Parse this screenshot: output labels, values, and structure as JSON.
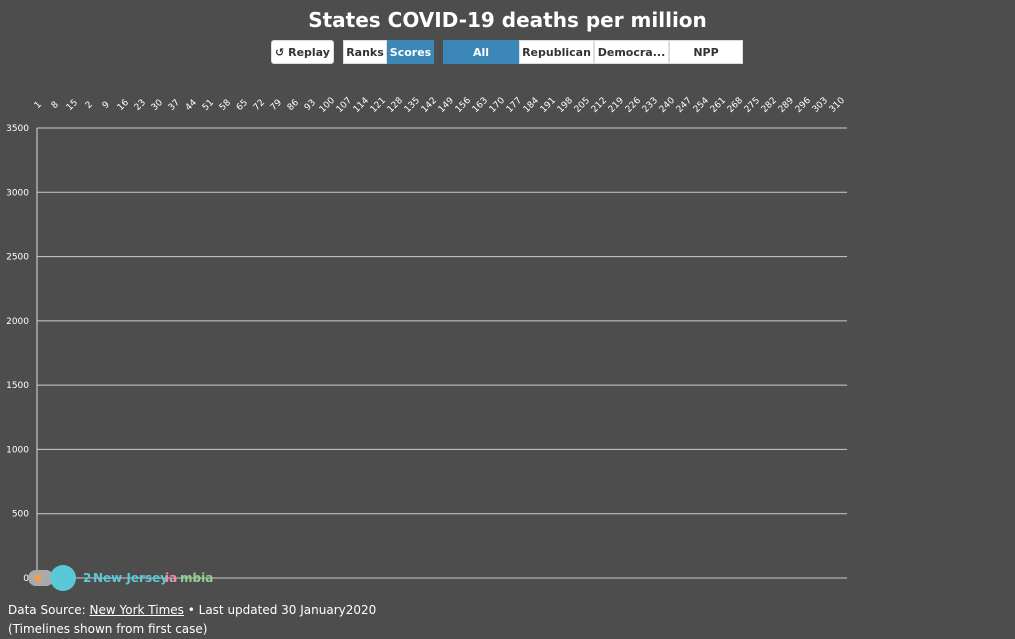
{
  "title": "States COVID-19 deaths per million",
  "controls": {
    "replay": "Replay",
    "ranks": "Ranks",
    "scores": "Scores",
    "all": "All",
    "republican": "Republican",
    "democrat": "Democra...",
    "npp": "NPP"
  },
  "footer": {
    "prefix": "Data Source: ",
    "source": "New York Times",
    "updated": " • Last updated 30 January2020",
    "note": "(Timelines shown from first case)"
  },
  "chart_data": {
    "type": "line",
    "title": "States COVID-19 deaths per million",
    "ylim": [
      0,
      3500
    ],
    "yticks": [
      0,
      500,
      1000,
      1500,
      2000,
      2500,
      3000,
      3500
    ],
    "xticks": [
      "1",
      "8",
      "15",
      "2",
      "9",
      "16",
      "23",
      "30",
      "37",
      "44",
      "51",
      "58",
      "65",
      "72",
      "79",
      "86",
      "93",
      "100",
      "107",
      "114",
      "121",
      "128",
      "135",
      "142",
      "149",
      "156",
      "163",
      "170",
      "177",
      "184",
      "191",
      "198",
      "205",
      "212",
      "219",
      "226",
      "233",
      "240",
      "247",
      "254",
      "261",
      "268",
      "275",
      "282",
      "289",
      "296",
      "303",
      "310"
    ],
    "grid": true,
    "labels": [
      {
        "text": "2",
        "color": "#5bc8d8"
      },
      {
        "text": "New Jersey",
        "color": "#5bc8d8"
      },
      {
        "text": "ia",
        "color": "#e88fb0"
      },
      {
        "text": "mbia",
        "color": "#8fd08f"
      }
    ]
  }
}
